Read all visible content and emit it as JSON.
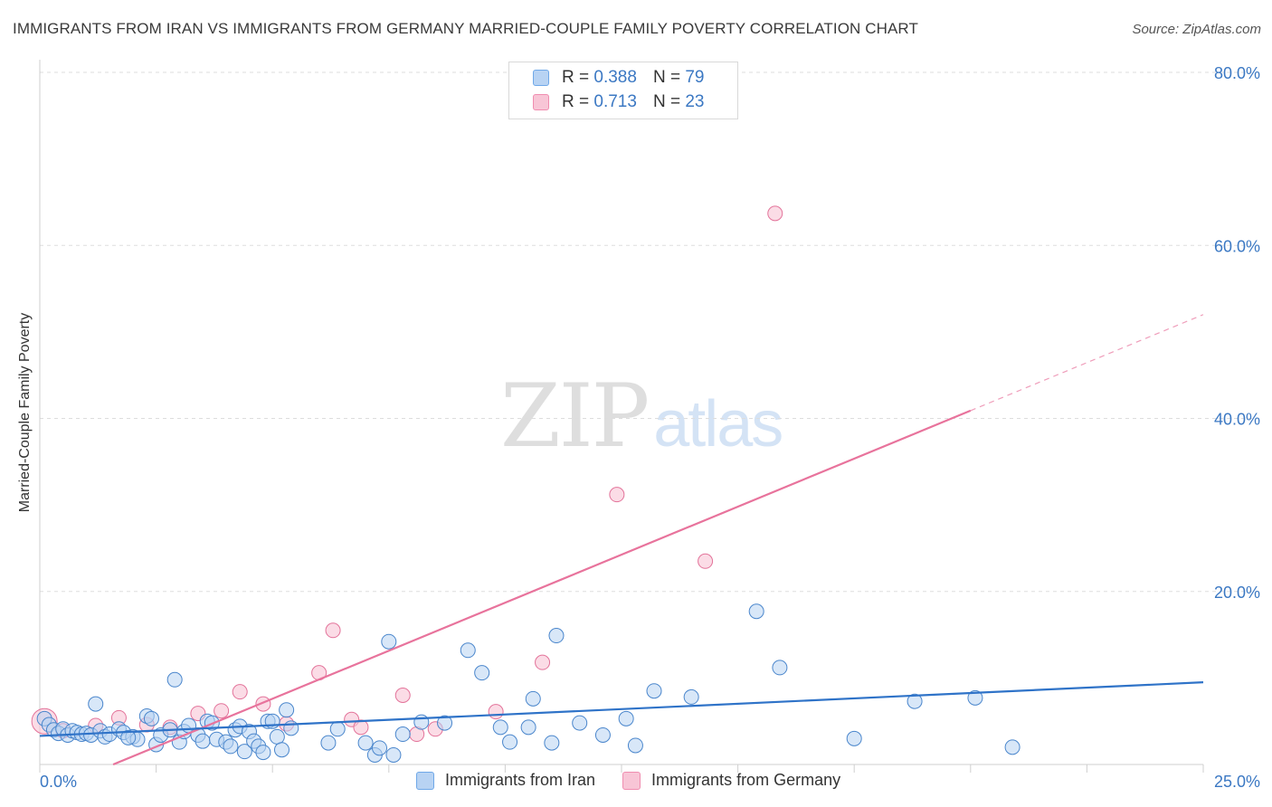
{
  "title": "IMMIGRANTS FROM IRAN VS IMMIGRANTS FROM GERMANY MARRIED-COUPLE FAMILY POVERTY CORRELATION CHART",
  "source": "Source: ZipAtlas.com",
  "watermark": {
    "zip": "ZIP",
    "atlas": "atlas"
  },
  "legend_top": [
    {
      "r_label": "R =",
      "r_value": "0.388",
      "n_label": "N =",
      "n_value": "79"
    },
    {
      "r_label": "R =",
      "r_value": "0.713",
      "n_label": "N =",
      "n_value": "23"
    }
  ],
  "chart_data": {
    "type": "scatter",
    "title": "IMMIGRANTS FROM IRAN VS IMMIGRANTS FROM GERMANY MARRIED-COUPLE FAMILY POVERTY CORRELATION CHART",
    "xlabel": "",
    "ylabel": "Married-Couple Family Poverty",
    "xlim": [
      0,
      25
    ],
    "ylim": [
      0,
      80
    ],
    "x_tick_labels": [
      "0.0%",
      "25.0%"
    ],
    "y_ticks": [
      20,
      40,
      60,
      80
    ],
    "y_tick_labels": [
      "20.0%",
      "40.0%",
      "60.0%",
      "80.0%"
    ],
    "grid": true,
    "legend_position": "top-center",
    "series": [
      {
        "name": "Immigrants from Iran",
        "color": "#6fa8e8",
        "stroke": "#4a86cc",
        "fill": "#b8d3f3",
        "R": 0.388,
        "N": 79,
        "trend": {
          "x0": 0,
          "y0": 3.3,
          "x1": 25,
          "y1": 9.5
        },
        "points": [
          [
            0.1,
            5.3
          ],
          [
            0.2,
            4.6
          ],
          [
            0.3,
            4.0
          ],
          [
            0.4,
            3.6
          ],
          [
            0.5,
            4.1
          ],
          [
            0.6,
            3.4
          ],
          [
            0.7,
            3.9
          ],
          [
            0.8,
            3.7
          ],
          [
            0.9,
            3.5
          ],
          [
            1.0,
            3.6
          ],
          [
            1.1,
            3.4
          ],
          [
            1.2,
            7.0
          ],
          [
            1.3,
            3.9
          ],
          [
            1.4,
            3.2
          ],
          [
            1.5,
            3.5
          ],
          [
            1.7,
            4.1
          ],
          [
            1.8,
            3.7
          ],
          [
            2.0,
            3.2
          ],
          [
            2.1,
            2.9
          ],
          [
            2.3,
            5.6
          ],
          [
            2.4,
            5.3
          ],
          [
            2.5,
            2.3
          ],
          [
            2.6,
            3.4
          ],
          [
            2.8,
            4.0
          ],
          [
            2.9,
            9.8
          ],
          [
            3.0,
            2.6
          ],
          [
            3.1,
            3.8
          ],
          [
            3.2,
            4.5
          ],
          [
            3.4,
            3.4
          ],
          [
            3.5,
            2.7
          ],
          [
            3.6,
            5.0
          ],
          [
            3.7,
            4.8
          ],
          [
            3.8,
            2.9
          ],
          [
            4.0,
            2.6
          ],
          [
            4.1,
            2.1
          ],
          [
            4.2,
            4.0
          ],
          [
            4.3,
            4.4
          ],
          [
            4.4,
            1.5
          ],
          [
            4.5,
            3.8
          ],
          [
            4.6,
            2.7
          ],
          [
            4.7,
            2.1
          ],
          [
            4.8,
            1.4
          ],
          [
            4.9,
            5.0
          ],
          [
            5.0,
            5.0
          ],
          [
            5.1,
            3.2
          ],
          [
            5.2,
            1.7
          ],
          [
            5.3,
            6.3
          ],
          [
            5.4,
            4.2
          ],
          [
            6.2,
            2.5
          ],
          [
            6.4,
            4.1
          ],
          [
            7.0,
            2.5
          ],
          [
            7.2,
            1.1
          ],
          [
            7.3,
            1.9
          ],
          [
            7.5,
            14.2
          ],
          [
            7.6,
            1.1
          ],
          [
            7.8,
            3.5
          ],
          [
            8.2,
            4.9
          ],
          [
            8.7,
            4.8
          ],
          [
            9.2,
            13.2
          ],
          [
            9.5,
            10.6
          ],
          [
            9.9,
            4.3
          ],
          [
            10.1,
            2.6
          ],
          [
            10.5,
            4.3
          ],
          [
            10.6,
            7.6
          ],
          [
            11.0,
            2.5
          ],
          [
            11.1,
            14.9
          ],
          [
            11.6,
            4.8
          ],
          [
            12.1,
            3.4
          ],
          [
            12.6,
            5.3
          ],
          [
            12.8,
            2.2
          ],
          [
            13.2,
            8.5
          ],
          [
            14.0,
            7.8
          ],
          [
            15.4,
            17.7
          ],
          [
            15.9,
            11.2
          ],
          [
            17.5,
            3.0
          ],
          [
            18.8,
            7.3
          ],
          [
            20.1,
            7.7
          ],
          [
            20.9,
            2.0
          ],
          [
            1.9,
            3.1
          ]
        ]
      },
      {
        "name": "Immigrants from Germany",
        "color": "#f08db0",
        "stroke": "#e3739a",
        "fill": "#f8c5d6",
        "R": 0.713,
        "N": 23,
        "trend": {
          "x0": 0,
          "y0": -3.5,
          "x1": 25,
          "y1": 52.0,
          "solid_until_x": 20
        },
        "points": [
          [
            0.1,
            5.0
          ],
          [
            0.5,
            3.9
          ],
          [
            1.2,
            4.5
          ],
          [
            1.7,
            5.4
          ],
          [
            2.3,
            4.6
          ],
          [
            2.8,
            4.3
          ],
          [
            3.4,
            5.9
          ],
          [
            3.9,
            6.2
          ],
          [
            4.3,
            8.4
          ],
          [
            4.8,
            7.0
          ],
          [
            5.3,
            4.7
          ],
          [
            6.0,
            10.6
          ],
          [
            6.3,
            15.5
          ],
          [
            6.7,
            5.2
          ],
          [
            6.9,
            4.3
          ],
          [
            7.8,
            8.0
          ],
          [
            8.1,
            3.5
          ],
          [
            8.5,
            4.1
          ],
          [
            9.8,
            6.1
          ],
          [
            10.8,
            11.8
          ],
          [
            12.4,
            31.2
          ],
          [
            14.3,
            23.5
          ],
          [
            15.8,
            63.7
          ]
        ]
      }
    ]
  },
  "legend_bottom": [
    {
      "label": "Immigrants from Iran"
    },
    {
      "label": "Immigrants from Germany"
    }
  ]
}
